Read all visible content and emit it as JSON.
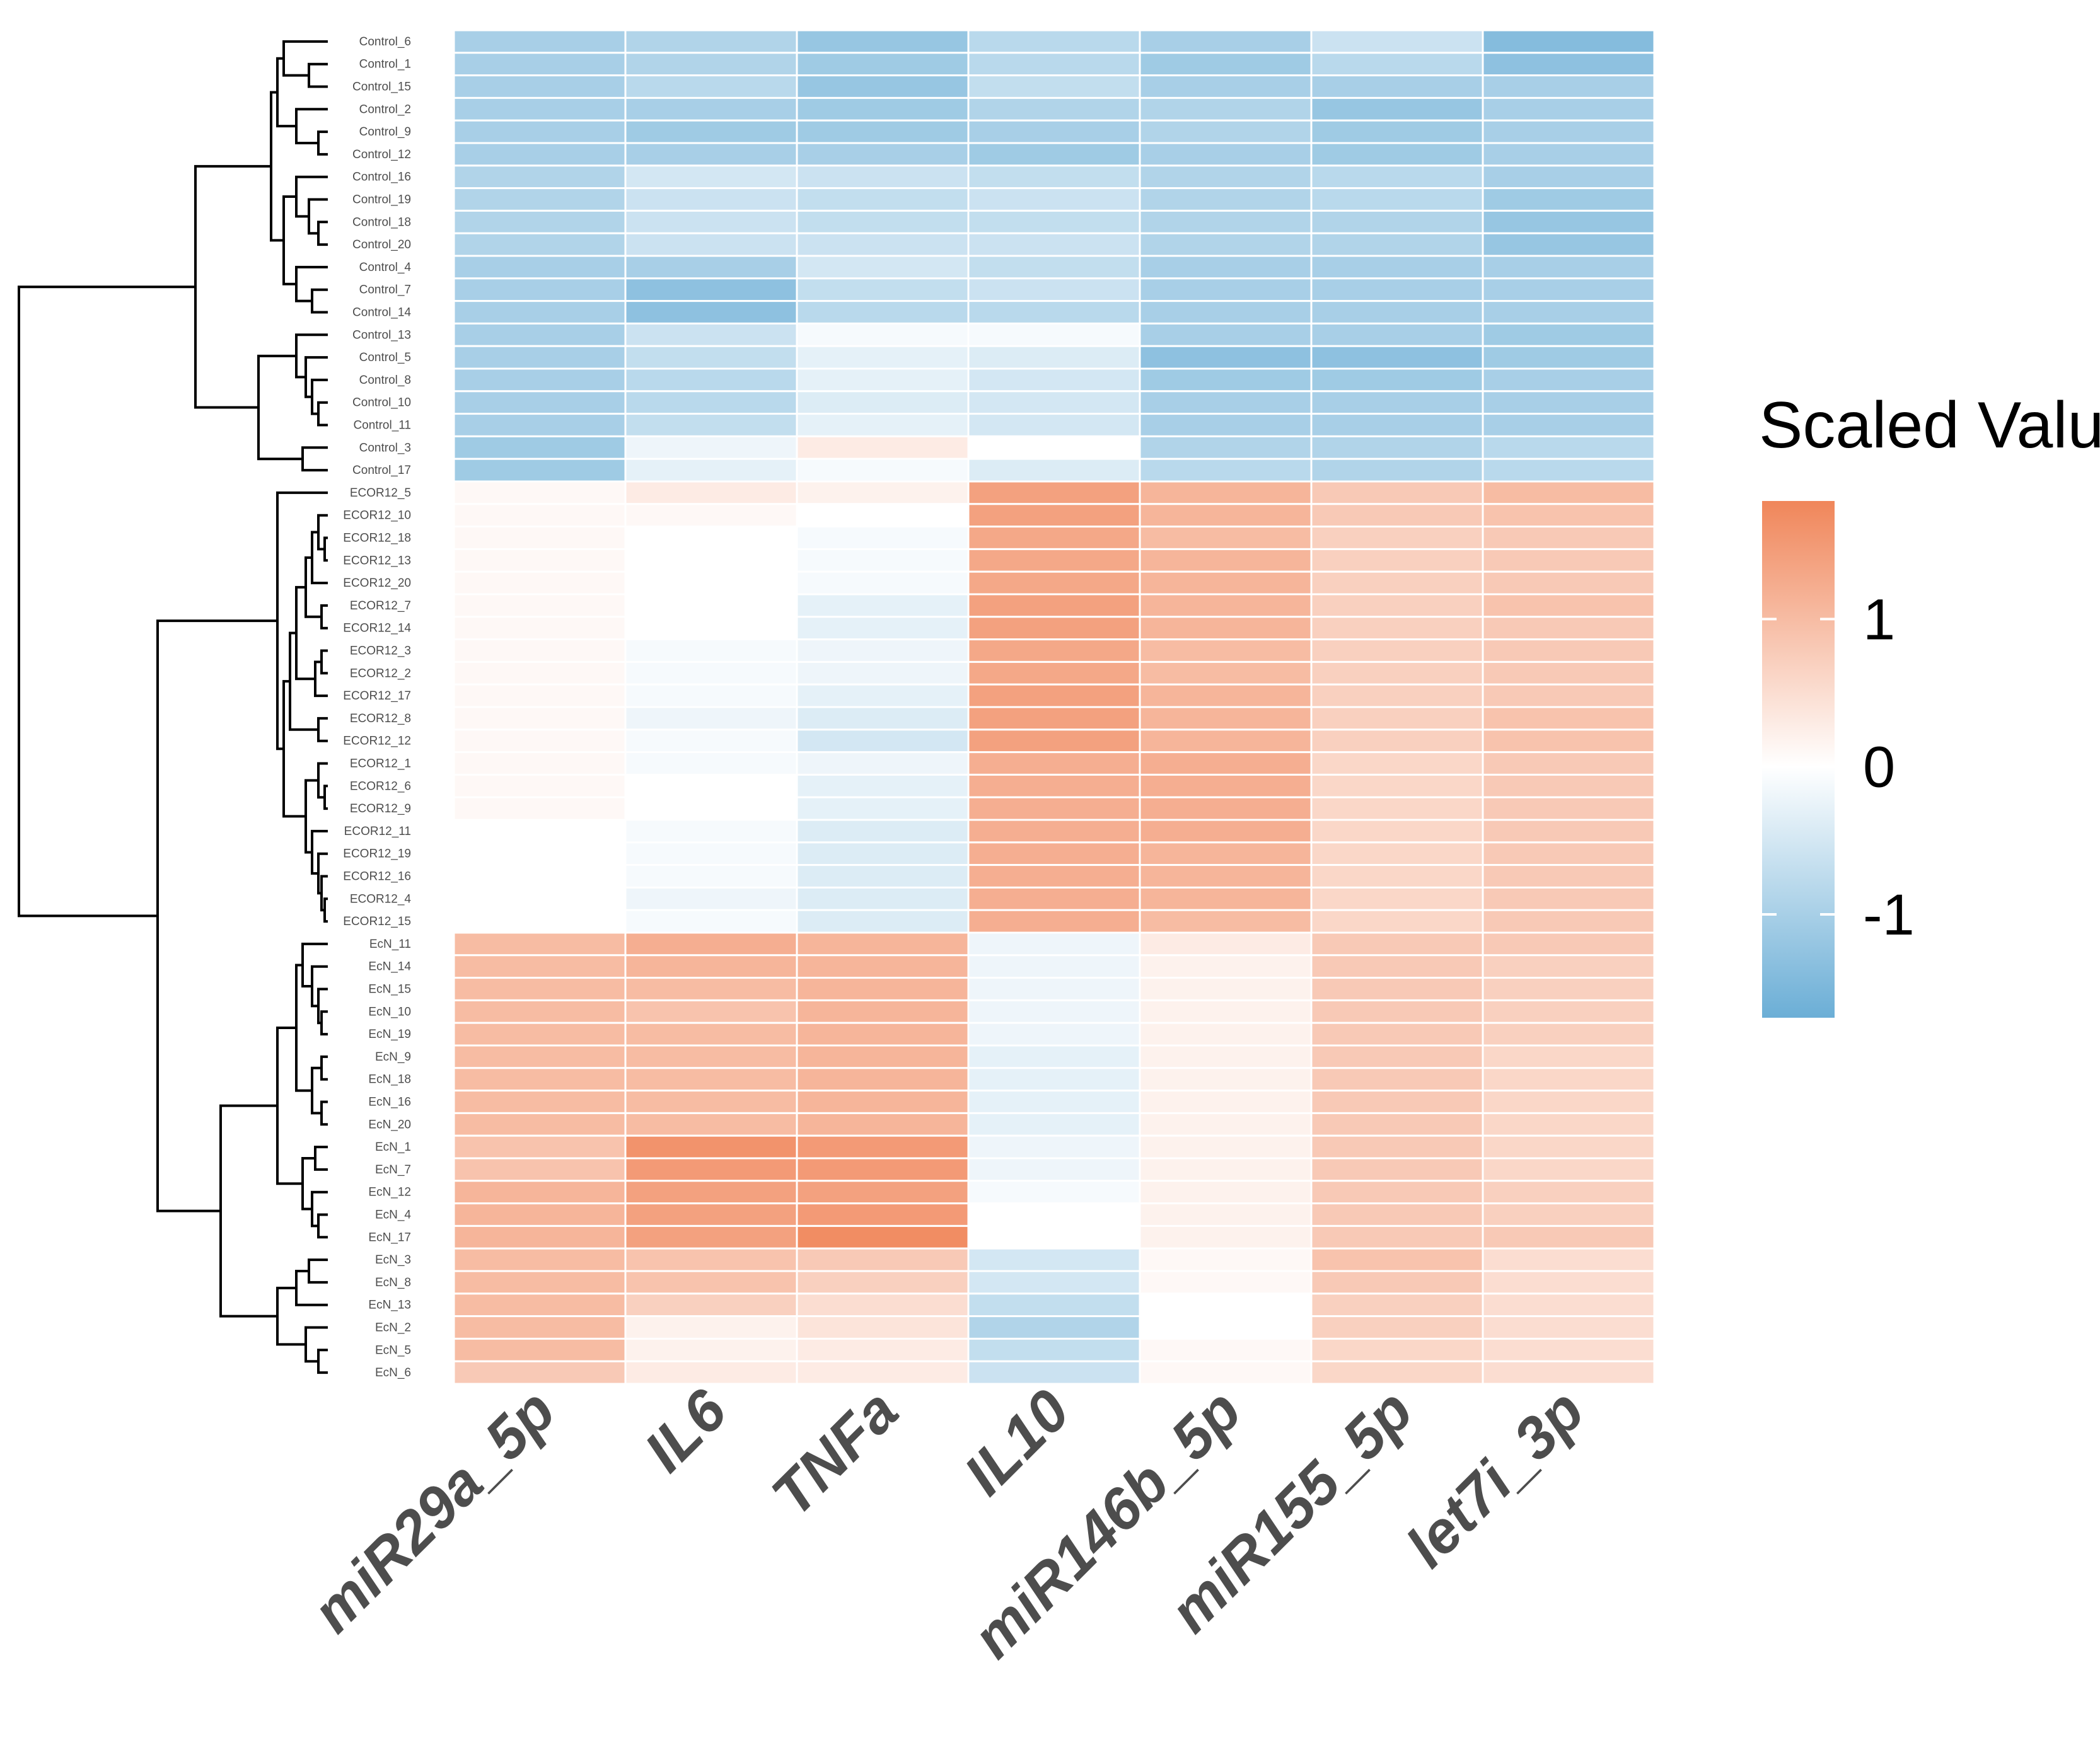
{
  "chart_data": {
    "type": "heatmap",
    "title": "",
    "xlabel": "",
    "ylabel": "",
    "columns": [
      "miR29a_5p",
      "IL6",
      "TNFa",
      "IL10",
      "miR146b_5p",
      "miR155_5p",
      "let7i_3p"
    ],
    "rows": [
      "Control_6",
      "Control_1",
      "Control_15",
      "Control_2",
      "Control_9",
      "Control_12",
      "Control_16",
      "Control_19",
      "Control_18",
      "Control_20",
      "Control_4",
      "Control_7",
      "Control_14",
      "Control_13",
      "Control_5",
      "Control_8",
      "Control_10",
      "Control_11",
      "Control_3",
      "Control_17",
      "ECOR12_5",
      "ECOR12_10",
      "ECOR12_18",
      "ECOR12_13",
      "ECOR12_20",
      "ECOR12_7",
      "ECOR12_14",
      "ECOR12_3",
      "ECOR12_2",
      "ECOR12_17",
      "ECOR12_8",
      "ECOR12_12",
      "ECOR12_1",
      "ECOR12_6",
      "ECOR12_9",
      "ECOR12_11",
      "ECOR12_19",
      "ECOR12_16",
      "ECOR12_4",
      "ECOR12_15",
      "EcN_11",
      "EcN_14",
      "EcN_15",
      "EcN_10",
      "EcN_19",
      "EcN_9",
      "EcN_18",
      "EcN_16",
      "EcN_20",
      "EcN_1",
      "EcN_7",
      "EcN_12",
      "EcN_4",
      "EcN_17",
      "EcN_3",
      "EcN_8",
      "EcN_13",
      "EcN_2",
      "EcN_5",
      "EcN_6"
    ],
    "values": [
      [
        -1.0,
        -0.9,
        -1.2,
        -0.8,
        -1.0,
        -0.6,
        -1.4
      ],
      [
        -1.0,
        -0.9,
        -1.1,
        -0.8,
        -1.1,
        -0.8,
        -1.3
      ],
      [
        -1.0,
        -0.8,
        -1.2,
        -0.7,
        -1.0,
        -1.0,
        -1.0
      ],
      [
        -1.0,
        -1.0,
        -1.1,
        -0.9,
        -0.9,
        -1.2,
        -1.0
      ],
      [
        -1.0,
        -1.1,
        -1.1,
        -1.0,
        -0.9,
        -1.1,
        -1.0
      ],
      [
        -1.0,
        -1.0,
        -1.0,
        -1.1,
        -1.0,
        -1.1,
        -1.0
      ],
      [
        -0.9,
        -0.5,
        -0.6,
        -0.7,
        -0.9,
        -0.8,
        -1.0
      ],
      [
        -0.9,
        -0.6,
        -0.7,
        -0.6,
        -0.9,
        -0.8,
        -1.1
      ],
      [
        -0.9,
        -0.6,
        -0.7,
        -0.7,
        -0.9,
        -0.9,
        -1.2
      ],
      [
        -0.9,
        -0.6,
        -0.6,
        -0.6,
        -0.9,
        -0.9,
        -1.2
      ],
      [
        -1.0,
        -1.0,
        -0.5,
        -0.7,
        -1.0,
        -1.0,
        -1.0
      ],
      [
        -1.0,
        -1.3,
        -0.7,
        -0.6,
        -1.0,
        -1.0,
        -1.0
      ],
      [
        -1.0,
        -1.3,
        -0.8,
        -0.8,
        -1.0,
        -1.0,
        -1.0
      ],
      [
        -1.0,
        -0.6,
        -0.1,
        -0.1,
        -1.0,
        -1.0,
        -1.1
      ],
      [
        -1.0,
        -0.7,
        -0.3,
        -0.4,
        -1.3,
        -1.3,
        -1.1
      ],
      [
        -1.0,
        -0.8,
        -0.3,
        -0.5,
        -1.1,
        -1.1,
        -1.0
      ],
      [
        -1.0,
        -0.8,
        -0.4,
        -0.5,
        -1.0,
        -1.0,
        -1.0
      ],
      [
        -1.0,
        -0.7,
        -0.3,
        -0.5,
        -1.0,
        -1.0,
        -1.0
      ],
      [
        -1.1,
        -0.2,
        0.3,
        0.0,
        -0.9,
        -0.9,
        -0.8
      ],
      [
        -1.1,
        -0.3,
        -0.1,
        -0.4,
        -0.8,
        -0.9,
        -0.8
      ],
      [
        0.1,
        0.3,
        0.2,
        1.4,
        1.1,
        0.8,
        1.0
      ],
      [
        0.1,
        0.1,
        0.0,
        1.4,
        1.1,
        0.8,
        0.9
      ],
      [
        0.1,
        0.0,
        -0.1,
        1.3,
        1.0,
        0.7,
        0.8
      ],
      [
        0.1,
        0.0,
        -0.1,
        1.3,
        1.1,
        0.7,
        0.8
      ],
      [
        0.1,
        0.0,
        -0.1,
        1.3,
        1.1,
        0.7,
        0.8
      ],
      [
        0.1,
        0.0,
        -0.3,
        1.4,
        1.1,
        0.7,
        0.9
      ],
      [
        0.1,
        0.0,
        -0.3,
        1.4,
        1.1,
        0.7,
        0.8
      ],
      [
        0.1,
        -0.1,
        -0.2,
        1.3,
        1.0,
        0.7,
        0.8
      ],
      [
        0.1,
        -0.1,
        -0.2,
        1.3,
        1.0,
        0.7,
        0.8
      ],
      [
        0.1,
        -0.1,
        -0.3,
        1.4,
        1.1,
        0.7,
        0.8
      ],
      [
        0.1,
        -0.2,
        -0.4,
        1.4,
        1.1,
        0.7,
        0.9
      ],
      [
        0.1,
        -0.1,
        -0.5,
        1.4,
        1.1,
        0.7,
        0.9
      ],
      [
        0.1,
        -0.1,
        -0.2,
        1.2,
        1.2,
        0.6,
        0.8
      ],
      [
        0.1,
        0.0,
        -0.3,
        1.2,
        1.2,
        0.6,
        0.8
      ],
      [
        0.1,
        0.0,
        -0.3,
        1.2,
        1.2,
        0.6,
        0.8
      ],
      [
        0.0,
        -0.1,
        -0.4,
        1.2,
        1.2,
        0.6,
        0.8
      ],
      [
        0.0,
        -0.1,
        -0.4,
        1.2,
        1.1,
        0.6,
        0.8
      ],
      [
        0.0,
        -0.1,
        -0.4,
        1.2,
        1.1,
        0.6,
        0.8
      ],
      [
        0.0,
        -0.2,
        -0.4,
        1.2,
        1.1,
        0.6,
        0.8
      ],
      [
        0.0,
        -0.1,
        -0.4,
        1.2,
        1.0,
        0.6,
        0.8
      ],
      [
        1.0,
        1.2,
        1.1,
        -0.2,
        0.3,
        0.8,
        0.8
      ],
      [
        1.0,
        1.1,
        1.1,
        -0.2,
        0.2,
        0.8,
        0.7
      ],
      [
        1.0,
        1.0,
        1.1,
        -0.2,
        0.2,
        0.8,
        0.7
      ],
      [
        1.0,
        0.9,
        1.1,
        -0.2,
        0.2,
        0.8,
        0.7
      ],
      [
        1.0,
        1.0,
        1.1,
        -0.2,
        0.2,
        0.8,
        0.7
      ],
      [
        1.0,
        1.0,
        1.1,
        -0.3,
        0.2,
        0.8,
        0.6
      ],
      [
        1.0,
        1.0,
        1.1,
        -0.3,
        0.2,
        0.8,
        0.6
      ],
      [
        1.0,
        1.0,
        1.1,
        -0.3,
        0.2,
        0.8,
        0.6
      ],
      [
        1.0,
        1.0,
        1.1,
        -0.3,
        0.2,
        0.8,
        0.6
      ],
      [
        0.9,
        1.6,
        1.5,
        -0.2,
        0.2,
        0.8,
        0.6
      ],
      [
        0.9,
        1.5,
        1.5,
        -0.2,
        0.2,
        0.8,
        0.6
      ],
      [
        1.1,
        1.4,
        1.4,
        -0.1,
        0.2,
        0.8,
        0.7
      ],
      [
        1.1,
        1.4,
        1.5,
        0.0,
        0.2,
        0.8,
        0.7
      ],
      [
        1.1,
        1.4,
        1.7,
        0.0,
        0.2,
        0.8,
        0.8
      ],
      [
        1.0,
        0.9,
        0.8,
        -0.5,
        0.1,
        0.9,
        0.5
      ],
      [
        1.0,
        0.9,
        0.7,
        -0.5,
        0.1,
        0.8,
        0.5
      ],
      [
        1.0,
        0.7,
        0.5,
        -0.7,
        0.0,
        0.7,
        0.5
      ],
      [
        1.0,
        0.2,
        0.4,
        -0.9,
        0.0,
        0.7,
        0.5
      ],
      [
        1.0,
        0.2,
        0.3,
        -0.7,
        0.1,
        0.6,
        0.5
      ],
      [
        0.8,
        0.3,
        0.3,
        -0.6,
        0.1,
        0.6,
        0.5
      ]
    ],
    "legend": {
      "title": "Scaled Value",
      "ticks": [
        "1",
        "0",
        "-1"
      ],
      "tick_values": [
        1,
        0,
        -1
      ],
      "range": [
        -1.7,
        1.8
      ],
      "position": "right"
    },
    "colors": {
      "low": "#6baed6",
      "mid": "#ffffff",
      "high": "#f0865a"
    },
    "dendrogram": "hierarchical clustering of rows (left side)"
  }
}
